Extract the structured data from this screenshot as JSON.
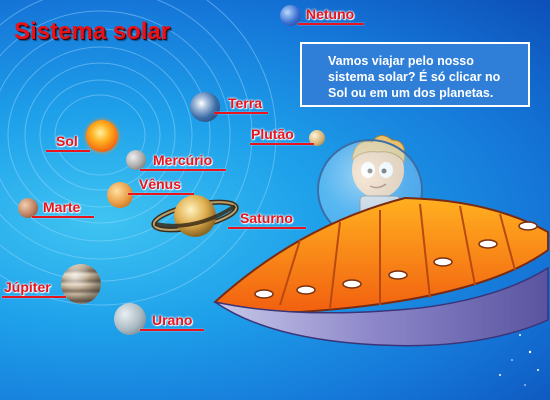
{
  "title": "Sistema solar",
  "info_text": "Vamos viajar pelo nosso sistema solar? É só clicar no Sol ou em um dos planetas.",
  "planets": {
    "sol": {
      "label": "Sol",
      "icon": "sun-icon"
    },
    "mercurio": {
      "label": "Mercúrio",
      "icon": "mercury-icon"
    },
    "venus": {
      "label": "Vênus",
      "icon": "venus-icon"
    },
    "terra": {
      "label": "Terra",
      "icon": "earth-icon"
    },
    "marte": {
      "label": "Marte",
      "icon": "mars-icon"
    },
    "jupiter": {
      "label": "Júpiter",
      "icon": "jupiter-icon"
    },
    "saturno": {
      "label": "Saturno",
      "icon": "saturn-icon"
    },
    "urano": {
      "label": "Urano",
      "icon": "uranus-icon"
    },
    "netuno": {
      "label": "Netuno",
      "icon": "neptune-icon"
    },
    "plutao": {
      "label": "Plutão",
      "icon": "pluto-icon"
    }
  },
  "colors": {
    "label_red": "#e8141e",
    "title_red": "#e8121a",
    "info_box": "#2f7fd8",
    "sky_blue": "#1ea0ea"
  }
}
